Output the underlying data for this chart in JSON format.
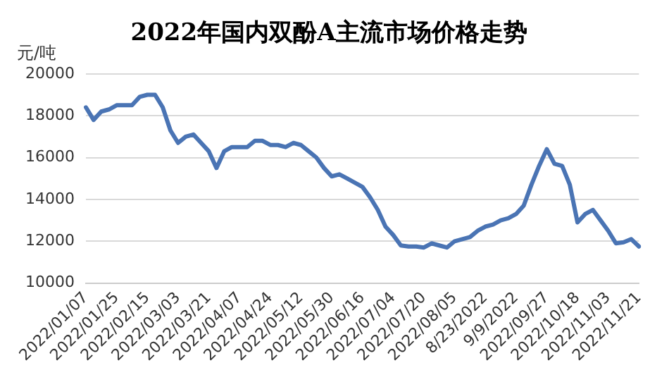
{
  "chart_data": {
    "type": "line",
    "title": "2022年国内双酚A主流市场价格走势",
    "ylabel": "元/吨",
    "categories": [
      "2022/01/07",
      null,
      null,
      null,
      "2022/01/25",
      null,
      null,
      null,
      "2022/02/15",
      null,
      null,
      null,
      "2022/03/03",
      null,
      null,
      null,
      "2022/03/21",
      null,
      null,
      null,
      "2022/04/07",
      null,
      null,
      null,
      "2022/04/24",
      null,
      null,
      null,
      "2022/05/12",
      null,
      null,
      null,
      "2022/05/30",
      null,
      null,
      null,
      "2022/06/16",
      null,
      null,
      null,
      "2022/07/04",
      null,
      null,
      null,
      "2022/07/20",
      null,
      null,
      null,
      "2022/08/05",
      null,
      null,
      null,
      "8/23/2022",
      null,
      null,
      null,
      "9/9/2022",
      null,
      null,
      null,
      "2022/09/27",
      null,
      null,
      null,
      "2022/10/18",
      null,
      null,
      null,
      "2022/11/03",
      null,
      null,
      null,
      "2022/11/21"
    ],
    "series": [
      {
        "color": "#4a74b4",
        "values": [
          18400,
          17800,
          18200,
          18300,
          18500,
          18500,
          18500,
          18900,
          19000,
          19000,
          18400,
          17300,
          16700,
          17000,
          17100,
          16700,
          16300,
          15500,
          16300,
          16500,
          16500,
          16500,
          16800,
          16800,
          16600,
          16600,
          16500,
          16700,
          16600,
          16300,
          16000,
          15500,
          15100,
          15200,
          15000,
          14800,
          14600,
          14100,
          13500,
          12700,
          12300,
          11800,
          11750,
          11750,
          11700,
          11900,
          11800,
          11700,
          12000,
          12100,
          12200,
          12500,
          12700,
          12800,
          13000,
          13100,
          13300,
          13700,
          14700,
          15600,
          16400,
          15700,
          15600,
          14700,
          12900,
          13300,
          13500,
          13000,
          12500,
          11900,
          11950,
          12100,
          11750
        ]
      }
    ],
    "ylim": [
      10000,
      20000
    ],
    "yticks": [
      10000,
      12000,
      14000,
      16000,
      18000,
      20000
    ],
    "grid": "y",
    "legend": false,
    "marker": "none",
    "line_style": "solid"
  }
}
